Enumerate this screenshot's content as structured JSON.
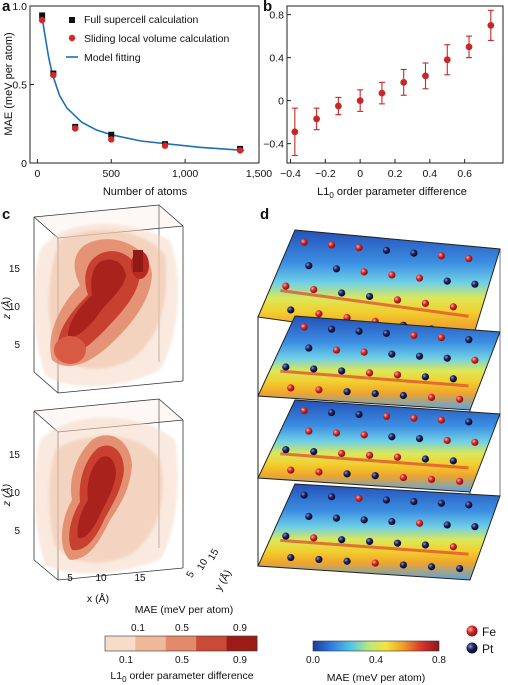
{
  "panels": {
    "a": "a",
    "b": "b",
    "c": "c",
    "d": "d"
  },
  "chart_data": [
    {
      "type": "scatter",
      "panel": "a",
      "xlabel": "Number of atoms",
      "ylabel": "MAE (meV per atom)",
      "xlim": [
        -50,
        1500
      ],
      "ylim": [
        0,
        1.0
      ],
      "x_ticks": [
        "0",
        "500",
        "1,000",
        "1,500"
      ],
      "y_ticks": [
        "0",
        "0.5",
        "1.0"
      ],
      "legend_position": "top-right",
      "series": [
        {
          "name": "Full supercell calculation",
          "marker": "square",
          "color": "#111111",
          "x": [
            32,
            108,
            256,
            500,
            864,
            1372
          ],
          "y": [
            0.94,
            0.57,
            0.23,
            0.18,
            0.12,
            0.09
          ]
        },
        {
          "name": "Sliding local volume calculation",
          "marker": "circle",
          "color": "#d62728",
          "x": [
            32,
            108,
            256,
            500,
            864,
            1372
          ],
          "y": [
            0.91,
            0.56,
            0.22,
            0.15,
            0.11,
            0.08
          ]
        },
        {
          "name": "Model fitting",
          "marker": "line",
          "color": "#1f6fb5",
          "x": [
            30,
            50,
            75,
            100,
            150,
            200,
            300,
            400,
            500,
            700,
            900,
            1100,
            1400
          ],
          "y": [
            0.94,
            0.82,
            0.68,
            0.57,
            0.43,
            0.35,
            0.26,
            0.21,
            0.18,
            0.14,
            0.12,
            0.1,
            0.08
          ]
        }
      ]
    },
    {
      "type": "scatter",
      "panel": "b",
      "xlabel_main": "L1",
      "xlabel_sub": "0",
      "xlabel_rest": " order parameter difference",
      "xlim": [
        -0.42,
        0.82
      ],
      "ylim": [
        -0.58,
        0.88
      ],
      "x_ticks": [
        "−0.4",
        "−0.2",
        "0",
        "0.2",
        "0.4",
        "0.6"
      ],
      "y_ticks": [
        "−0.4",
        "0",
        "0.4",
        "0.8"
      ],
      "color": "#c62828",
      "x": [
        -0.375,
        -0.25,
        -0.125,
        0.0,
        0.125,
        0.25,
        0.375,
        0.5,
        0.625,
        0.75
      ],
      "y": [
        -0.29,
        -0.17,
        -0.05,
        0.0,
        0.07,
        0.17,
        0.23,
        0.38,
        0.5,
        0.7
      ],
      "err": [
        0.22,
        0.1,
        0.08,
        0.1,
        0.1,
        0.12,
        0.12,
        0.14,
        0.1,
        0.14
      ]
    }
  ],
  "panel_c": {
    "z_label": "z (Å)",
    "z_ticks": [
      "15",
      "10",
      "5"
    ],
    "x_label": "x (Å)",
    "x_ticks": [
      "5",
      "10",
      "15"
    ],
    "y_label": "y (Å)",
    "y_ticks": [
      "5",
      "10",
      "15"
    ],
    "colorbar_top_title": "MAE (meV per atom)",
    "colorbar_top_ticks": [
      "0.1",
      "0.5",
      "0.9"
    ],
    "colorbar_bottom_ticks": [
      "0.1",
      "0.5",
      "0.9"
    ],
    "colorbar_bottom_title_main": "L1",
    "colorbar_bottom_title_sub": "0",
    "colorbar_bottom_title_rest": " order parameter difference",
    "colorbar_colors": [
      "#f7dcc9",
      "#f0b89b",
      "#e28a6a",
      "#c94a36",
      "#9b1c17"
    ]
  },
  "panel_d": {
    "legend": [
      {
        "label": "Fe",
        "color": "#d62728"
      },
      {
        "label": "Pt",
        "color": "#151a4a"
      }
    ],
    "colorbar_title": "MAE (meV per atom)",
    "colorbar_ticks": [
      "0.0",
      "0.4",
      "0.8"
    ],
    "colormap": [
      "#1b3a9a",
      "#2f7ae0",
      "#50c8e8",
      "#bde87a",
      "#f4e43a",
      "#f09a2a",
      "#d8362a",
      "#8e1620"
    ]
  }
}
